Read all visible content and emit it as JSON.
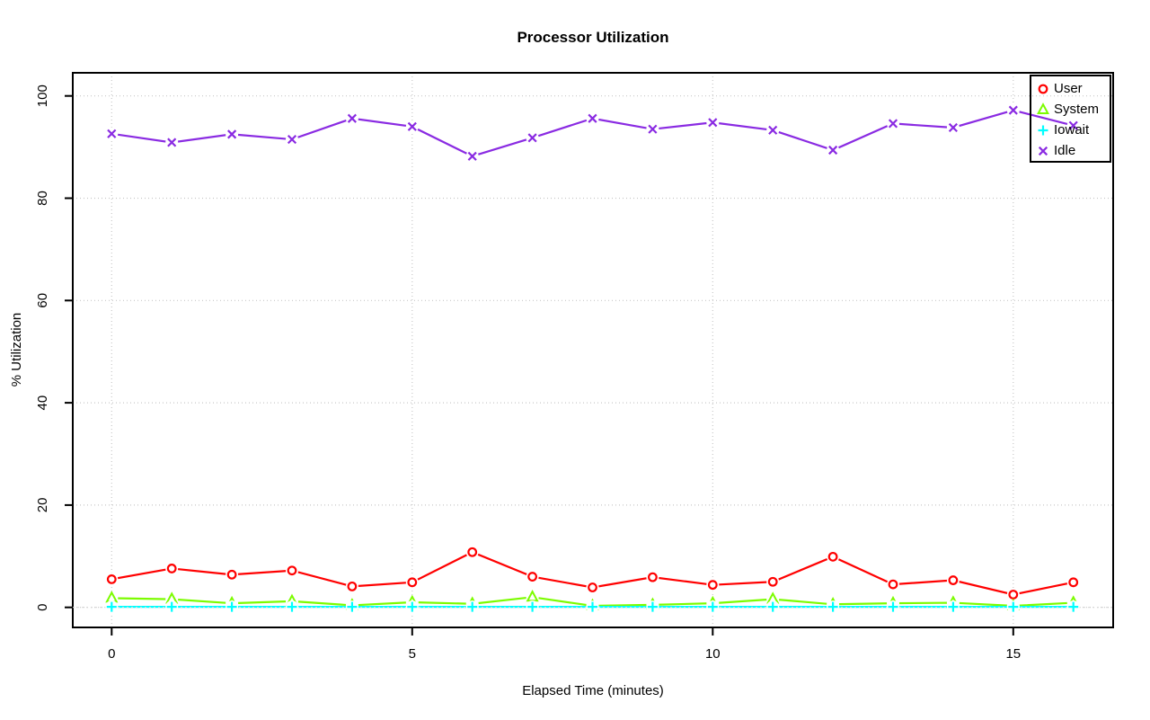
{
  "chart_data": {
    "type": "line",
    "title": "Processor Utilization",
    "xlabel": "Elapsed Time (minutes)",
    "ylabel": "% Utilization",
    "x": [
      0,
      1,
      2,
      3,
      4,
      5,
      6,
      7,
      8,
      9,
      10,
      11,
      12,
      13,
      14,
      15,
      16
    ],
    "xticks": [
      "0",
      "5",
      "10",
      "15"
    ],
    "xtick_values": [
      0,
      5,
      10,
      15
    ],
    "yticks": [
      "0",
      "20",
      "40",
      "60",
      "80",
      "100"
    ],
    "ytick_values": [
      0,
      20,
      40,
      60,
      80,
      100
    ],
    "xlim": [
      0,
      16
    ],
    "ylim": [
      0,
      100
    ],
    "grid": "dotted",
    "grid_color": "#C8C8C8",
    "axis_color": "#000000",
    "background": "#FFFFFF",
    "legend_position": "top-right",
    "series": [
      {
        "name": "User",
        "color": "#FF0000",
        "marker": "circle",
        "line_style": "solid",
        "values": [
          5.5,
          7.6,
          6.4,
          7.2,
          4.1,
          4.9,
          10.8,
          6.0,
          3.9,
          5.9,
          4.4,
          5.0,
          9.9,
          4.5,
          5.3,
          2.5,
          4.9
        ]
      },
      {
        "name": "System",
        "color": "#7CFC00",
        "marker": "triangle",
        "line_style": "solid",
        "values": [
          1.8,
          1.6,
          0.8,
          1.2,
          0.4,
          1.0,
          0.7,
          2.0,
          0.3,
          0.5,
          0.8,
          1.6,
          0.6,
          0.8,
          0.9,
          0.3,
          0.9
        ]
      },
      {
        "name": "Iowait",
        "color": "#00FFFF",
        "marker": "plus",
        "line_style": "solid",
        "values": [
          0.1,
          0.1,
          0.1,
          0.1,
          0.1,
          0.1,
          0.1,
          0.1,
          0.1,
          0.1,
          0.1,
          0.1,
          0.1,
          0.1,
          0.1,
          0.1,
          0.1
        ]
      },
      {
        "name": "Idle",
        "color": "#8A2BE2",
        "marker": "x",
        "line_style": "solid",
        "values": [
          92.6,
          90.9,
          92.5,
          91.5,
          95.6,
          94.0,
          88.2,
          91.8,
          95.6,
          93.5,
          94.8,
          93.3,
          89.4,
          94.6,
          93.8,
          97.2,
          94.2
        ]
      }
    ]
  }
}
